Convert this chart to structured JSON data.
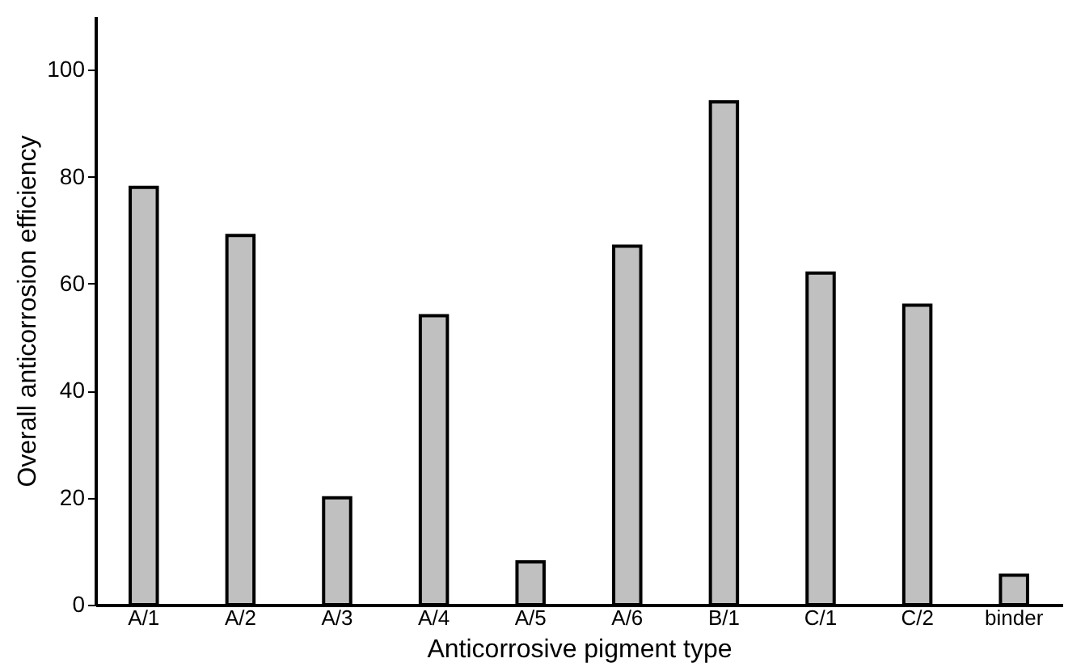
{
  "chart_data": {
    "type": "bar",
    "xlabel": "Anticorrosive pigment type",
    "ylabel": "Overall anticorrosion efficiency",
    "categories": [
      "A/1",
      "A/2",
      "A/3",
      "A/4",
      "A/5",
      "A/6",
      "B/1",
      "C/1",
      "C/2",
      "binder"
    ],
    "values": [
      78,
      69,
      20,
      54,
      8,
      67,
      94,
      62,
      56,
      5.5
    ],
    "color": "#c0c0c0",
    "ylim": [
      0,
      110
    ],
    "yticks": [
      0,
      20,
      40,
      60,
      80,
      100
    ],
    "grid": false
  }
}
